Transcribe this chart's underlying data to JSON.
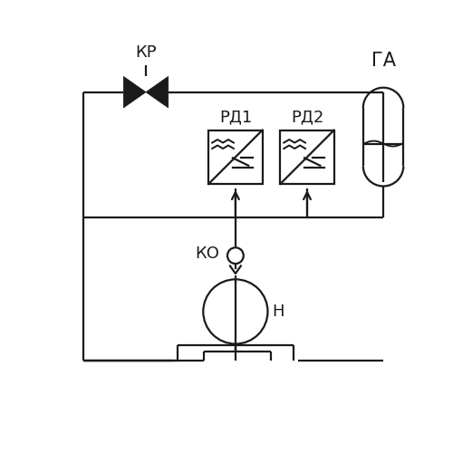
{
  "bg_color": "#ffffff",
  "line_color": "#1a1a1a",
  "line_width": 1.6,
  "labels": {
    "KR": "КР",
    "RD1": "РД1",
    "RD2": "РД2",
    "GA": "ГА",
    "KO": "КО",
    "N": "Н"
  },
  "label_fontsize": 12,
  "label_fontfamily": "DejaVu Sans"
}
